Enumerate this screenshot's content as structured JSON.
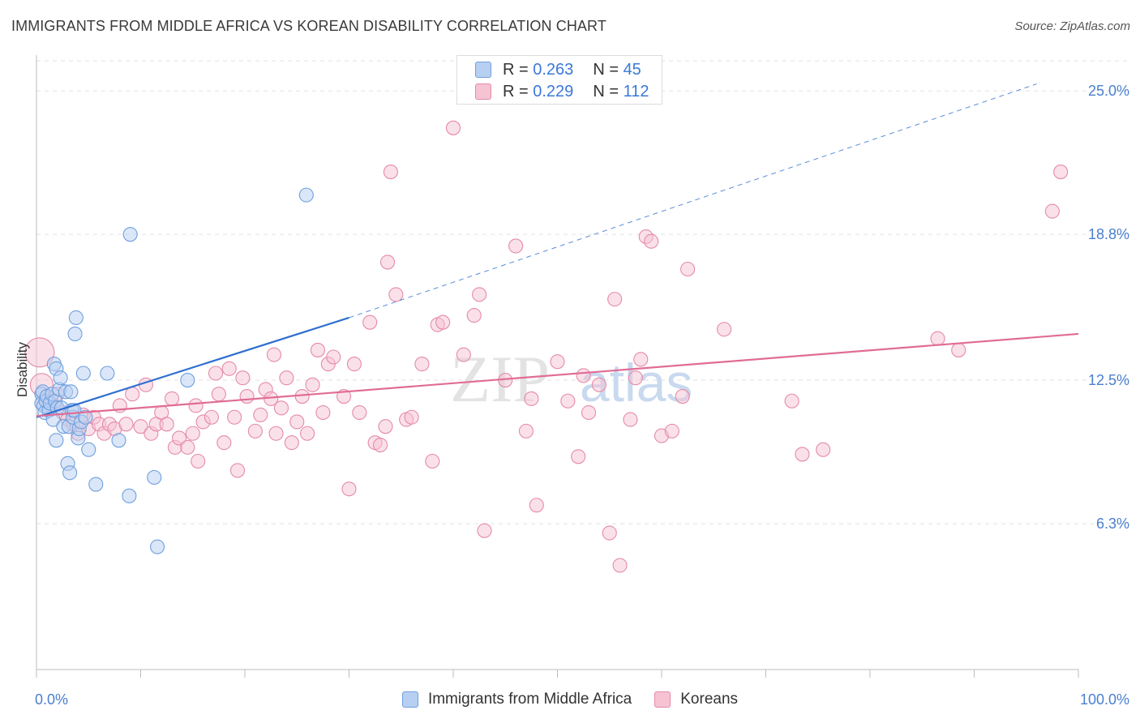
{
  "title": "IMMIGRANTS FROM MIDDLE AFRICA VS KOREAN DISABILITY CORRELATION CHART",
  "source": "Source: ZipAtlas.com",
  "watermark": {
    "part1": "ZIP",
    "part2": "atlas"
  },
  "colors": {
    "blue_fill": "#b7d0f2",
    "blue_stroke": "#6f9fdf",
    "blue_line": "#2f6fd0",
    "pink_fill": "#f6c3d3",
    "pink_stroke": "#e58aa8",
    "pink_line": "#e06c96",
    "grid": "#e2e2e2",
    "tick_text": "#4a7fd0"
  },
  "legend_top": [
    {
      "r_label": "R = ",
      "r_value": "0.263",
      "n_label": "N = ",
      "n_value": "45"
    },
    {
      "r_label": "R = ",
      "r_value": "0.229",
      "n_label": "N = ",
      "n_value": "112"
    }
  ],
  "chart_data": {
    "type": "scatter",
    "title": "IMMIGRANTS FROM MIDDLE AFRICA VS KOREAN DISABILITY CORRELATION CHART",
    "xlabel": "",
    "ylabel": "Disability",
    "xlim": [
      0,
      100
    ],
    "ylim": [
      0,
      26.3
    ],
    "x_tick_labels": [
      "0.0%",
      "100.0%"
    ],
    "y_ticks": [
      6.3,
      12.5,
      18.8,
      25.0
    ],
    "y_tick_labels": [
      "6.3%",
      "12.5%",
      "18.8%",
      "25.0%"
    ],
    "grid": true,
    "legend_position": "bottom",
    "series": [
      {
        "name": "Immigrants from Middle Africa",
        "color": "#6f9fdf",
        "trend": {
          "x0": 0,
          "y0": 10.9,
          "x1": 30,
          "y1": 15.2,
          "dash_to_x": 96,
          "dash_to_y": 25.3
        },
        "points": [
          [
            0.5,
            11.9
          ],
          [
            0.5,
            11.5
          ],
          [
            0.6,
            12.0
          ],
          [
            0.7,
            11.4
          ],
          [
            0.8,
            11.1
          ],
          [
            0.9,
            11.6
          ],
          [
            1.0,
            11.8
          ],
          [
            1.2,
            11.2
          ],
          [
            1.3,
            11.5
          ],
          [
            1.5,
            11.9
          ],
          [
            1.6,
            10.8
          ],
          [
            1.7,
            13.2
          ],
          [
            1.8,
            11.6
          ],
          [
            1.9,
            13.0
          ],
          [
            1.9,
            9.9
          ],
          [
            2.0,
            11.3
          ],
          [
            2.2,
            12.1
          ],
          [
            2.3,
            12.6
          ],
          [
            2.4,
            11.3
          ],
          [
            2.6,
            10.5
          ],
          [
            2.8,
            12.0
          ],
          [
            3.0,
            8.9
          ],
          [
            3.1,
            10.5
          ],
          [
            3.2,
            8.5
          ],
          [
            3.3,
            12.0
          ],
          [
            3.4,
            11.2
          ],
          [
            3.5,
            10.9
          ],
          [
            3.6,
            11.2
          ],
          [
            3.7,
            14.5
          ],
          [
            3.8,
            15.2
          ],
          [
            4.0,
            10.0
          ],
          [
            4.1,
            10.4
          ],
          [
            4.3,
            10.7
          ],
          [
            4.5,
            12.8
          ],
          [
            4.7,
            10.9
          ],
          [
            5.0,
            9.5
          ],
          [
            5.7,
            8.0
          ],
          [
            6.8,
            12.8
          ],
          [
            7.9,
            9.9
          ],
          [
            8.9,
            7.5
          ],
          [
            9.0,
            18.8
          ],
          [
            11.3,
            8.3
          ],
          [
            11.6,
            5.3
          ],
          [
            14.5,
            12.5
          ],
          [
            25.9,
            20.5
          ]
        ]
      },
      {
        "name": "Koreans",
        "color": "#e58aa8",
        "trend": {
          "x0": 0,
          "y0": 10.95,
          "x1": 100,
          "y1": 14.5
        },
        "points": [
          [
            0.3,
            13.7
          ],
          [
            0.5,
            12.3
          ],
          [
            1.0,
            11.6
          ],
          [
            1.7,
            11.4
          ],
          [
            2.0,
            11.9
          ],
          [
            2.5,
            11.1
          ],
          [
            3.0,
            10.8
          ],
          [
            3.5,
            10.6
          ],
          [
            4.0,
            10.2
          ],
          [
            4.5,
            11.0
          ],
          [
            5.0,
            10.4
          ],
          [
            5.5,
            10.9
          ],
          [
            6.0,
            10.6
          ],
          [
            6.5,
            10.2
          ],
          [
            7.0,
            10.6
          ],
          [
            7.5,
            10.4
          ],
          [
            8.0,
            11.4
          ],
          [
            8.6,
            10.6
          ],
          [
            9.2,
            11.9
          ],
          [
            10.0,
            10.5
          ],
          [
            10.5,
            12.3
          ],
          [
            11.0,
            10.2
          ],
          [
            11.5,
            10.6
          ],
          [
            12.0,
            11.1
          ],
          [
            12.5,
            10.6
          ],
          [
            13.0,
            11.7
          ],
          [
            13.3,
            9.6
          ],
          [
            13.7,
            10.0
          ],
          [
            14.5,
            9.6
          ],
          [
            15.0,
            10.2
          ],
          [
            15.3,
            11.4
          ],
          [
            15.5,
            9.0
          ],
          [
            16.0,
            10.7
          ],
          [
            16.8,
            10.9
          ],
          [
            17.2,
            12.8
          ],
          [
            17.5,
            11.9
          ],
          [
            18.0,
            9.8
          ],
          [
            18.5,
            13.0
          ],
          [
            19.0,
            10.9
          ],
          [
            19.3,
            8.6
          ],
          [
            19.8,
            12.6
          ],
          [
            20.2,
            11.8
          ],
          [
            21.0,
            10.3
          ],
          [
            21.5,
            11.0
          ],
          [
            22.0,
            12.1
          ],
          [
            22.5,
            11.7
          ],
          [
            22.8,
            13.6
          ],
          [
            23.0,
            10.2
          ],
          [
            23.5,
            11.3
          ],
          [
            24.0,
            12.6
          ],
          [
            24.5,
            9.8
          ],
          [
            25.0,
            10.7
          ],
          [
            25.5,
            11.8
          ],
          [
            26.0,
            10.2
          ],
          [
            26.5,
            12.3
          ],
          [
            27.0,
            13.8
          ],
          [
            27.5,
            11.1
          ],
          [
            28.0,
            13.2
          ],
          [
            28.5,
            13.5
          ],
          [
            29.5,
            11.8
          ],
          [
            30.0,
            7.8
          ],
          [
            30.5,
            13.2
          ],
          [
            31.0,
            11.1
          ],
          [
            32.0,
            15.0
          ],
          [
            32.5,
            9.8
          ],
          [
            33.0,
            9.7
          ],
          [
            33.5,
            10.5
          ],
          [
            33.7,
            17.6
          ],
          [
            34.0,
            21.5
          ],
          [
            34.5,
            16.2
          ],
          [
            35.5,
            10.8
          ],
          [
            36.0,
            10.9
          ],
          [
            37.0,
            13.2
          ],
          [
            38.0,
            9.0
          ],
          [
            38.5,
            14.9
          ],
          [
            39.0,
            15.0
          ],
          [
            40.0,
            23.4
          ],
          [
            41.0,
            13.6
          ],
          [
            42.0,
            15.3
          ],
          [
            42.5,
            16.2
          ],
          [
            43.0,
            6.0
          ],
          [
            45.0,
            12.5
          ],
          [
            46.0,
            18.3
          ],
          [
            47.0,
            10.3
          ],
          [
            47.5,
            11.7
          ],
          [
            48.0,
            7.1
          ],
          [
            50.0,
            13.3
          ],
          [
            51.0,
            11.6
          ],
          [
            52.0,
            9.2
          ],
          [
            52.5,
            12.7
          ],
          [
            53.0,
            11.1
          ],
          [
            54.0,
            12.3
          ],
          [
            55.0,
            5.9
          ],
          [
            55.5,
            16.0
          ],
          [
            56.0,
            4.5
          ],
          [
            57.0,
            10.8
          ],
          [
            57.5,
            12.6
          ],
          [
            58.0,
            13.4
          ],
          [
            58.5,
            18.7
          ],
          [
            59.0,
            18.5
          ],
          [
            60.0,
            10.1
          ],
          [
            61.0,
            10.3
          ],
          [
            62.0,
            11.8
          ],
          [
            62.5,
            17.3
          ],
          [
            66.0,
            14.7
          ],
          [
            72.5,
            11.6
          ],
          [
            73.5,
            9.3
          ],
          [
            75.5,
            9.5
          ],
          [
            86.5,
            14.3
          ],
          [
            88.5,
            13.8
          ],
          [
            97.5,
            19.8
          ],
          [
            98.3,
            21.5
          ]
        ]
      }
    ]
  },
  "legend_bottom": [
    "Immigrants from Middle Africa",
    "Koreans"
  ]
}
